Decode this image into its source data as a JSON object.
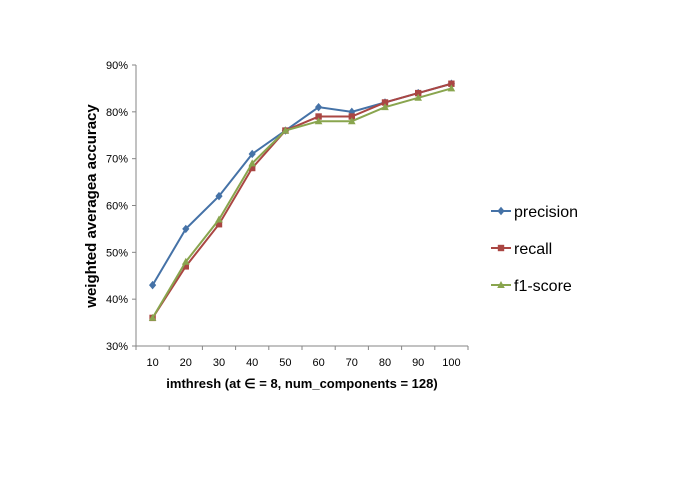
{
  "chart_data": {
    "type": "line",
    "xlabel": "imthresh (at ∈ = 8, num_components = 128)",
    "ylabel": "weighted averagea accuracy",
    "x": [
      10,
      20,
      30,
      40,
      50,
      60,
      70,
      80,
      90,
      100
    ],
    "ylim": [
      30,
      90
    ],
    "yticks": [
      "30%",
      "40%",
      "50%",
      "60%",
      "70%",
      "80%",
      "90%"
    ],
    "grid": false,
    "legend_position": "right",
    "series": [
      {
        "name": "precision",
        "color": "#4572A7",
        "marker": "diamond",
        "values": [
          43,
          55,
          62,
          71,
          76,
          81,
          80,
          82,
          84,
          86
        ]
      },
      {
        "name": "recall",
        "color": "#AA4643",
        "marker": "square",
        "values": [
          36,
          47,
          56,
          68,
          76,
          79,
          79,
          82,
          84,
          86
        ]
      },
      {
        "name": "f1-score",
        "color": "#89A54E",
        "marker": "triangle",
        "values": [
          36,
          48,
          57,
          69,
          76,
          78,
          78,
          81,
          83,
          85
        ]
      }
    ]
  }
}
